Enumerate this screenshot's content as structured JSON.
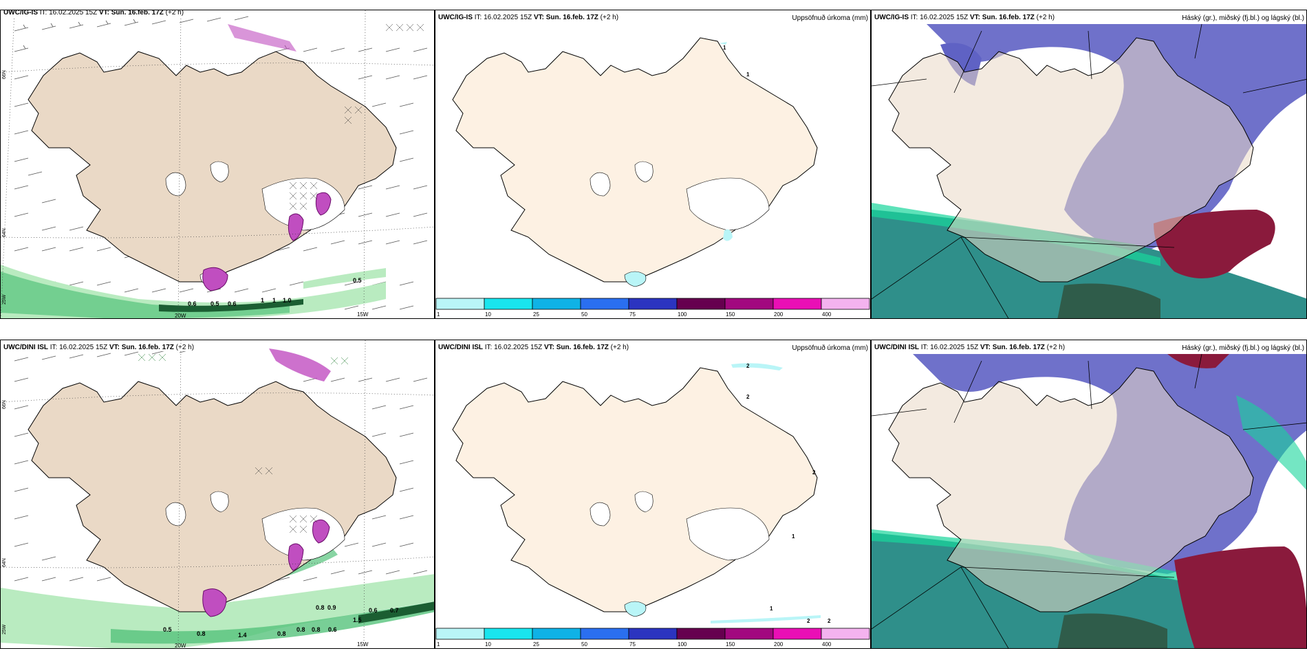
{
  "top": {
    "panel1": {
      "model": "UWC/IG-IS",
      "it_label": "IT:",
      "it_value": "16.02.2025 15Z",
      "vt_label": "VT:",
      "vt_value": "Sun. 16.feb. 17Z",
      "offset": "(+2 h)"
    },
    "panel2": {
      "model": "UWC/IG-IS",
      "it_label": "IT:",
      "it_value": "16.02.2025 15Z",
      "vt_label": "VT:",
      "vt_value": "Sun. 16.feb. 17Z",
      "offset": "(+2 h)",
      "right_title": "Uppsöfnuð úrkoma (mm)"
    },
    "panel3": {
      "model": "UWC/IG-IS",
      "it_label": "IT:",
      "it_value": "16.02.2025 15Z",
      "vt_label": "VT:",
      "vt_value": "Sun. 16.feb. 17Z",
      "offset": "(+2 h)",
      "right_title": "Háský (gr.), miðský (fj.bl.) og lágský (bl.)"
    }
  },
  "bottom": {
    "panel1": {
      "model": "UWC/DINI ISL",
      "it_label": "IT:",
      "it_value": "16.02.2025 15Z",
      "vt_label": "VT:",
      "vt_value": "Sun. 16.feb. 17Z",
      "offset": "(+2 h)"
    },
    "panel2": {
      "model": "UWC/DINI ISL",
      "it_label": "IT:",
      "it_value": "16.02.2025 15Z",
      "vt_label": "VT:",
      "vt_value": "Sun. 16.feb. 17Z",
      "offset": "(+2 h)",
      "right_title": "Uppsöfnuð úrkoma (mm)"
    },
    "panel3": {
      "model": "UWC/DINI ISL",
      "it_label": "IT:",
      "it_value": "16.02.2025 15Z",
      "vt_label": "VT:",
      "vt_value": "Sun. 16.feb. 17Z",
      "offset": "(+2 h)",
      "right_title": "Háský (gr.), miðský (fj.bl.) og lágský (bl.)"
    }
  },
  "grid_labels": {
    "lon_20w": "20W",
    "lon_15w": "15W",
    "lat_66n": "66N",
    "lat_64n": "64N",
    "lon_25w": "25W"
  },
  "colorbar": {
    "ticks": [
      "1",
      "10",
      "25",
      "50",
      "75",
      "100",
      "150",
      "200",
      "400"
    ],
    "colors": [
      "#b9f5f7",
      "#19e5ee",
      "#0fb2e6",
      "#2a6ff0",
      "#2b34c0",
      "#66004f",
      "#a2087f",
      "#ea0fb5",
      "#f4b3ef"
    ]
  },
  "precip_labels_top": [
    "0.5",
    "0.6",
    "0.5",
    "0.6",
    "1",
    "1",
    "1.0"
  ],
  "precip_labels_bottom": [
    "0.8",
    "0.9",
    "0.6",
    "0.7",
    "1.5",
    "0.5",
    "0.8",
    "0.8",
    "0.8",
    "0.6",
    "1.4",
    "0.8"
  ],
  "accum_labels_top": [
    "1",
    "1"
  ],
  "accum_labels_bottom": [
    "2",
    "2",
    "2",
    "1",
    "1",
    "2",
    "2"
  ],
  "colors": {
    "land": "#ead9c6",
    "land_light": "#fdf1e3",
    "green_light": "#b9ebc0",
    "green_mid": "#56c37c",
    "green_dark": "#1b5e32",
    "magenta": "#c04ec0",
    "cloud_high": "#5f62c4",
    "cloud_mid": "#2f8f8a",
    "cloud_low": "#8a1a3c"
  }
}
